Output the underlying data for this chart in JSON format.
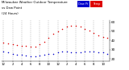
{
  "title_line1": "Milwaukee Weather Outdoor Temperature",
  "title_line2": "vs Dew Point",
  "title_line3": "(24 Hours)",
  "title_fontsize": 2.8,
  "background_color": "#ffffff",
  "plot_bg": "#ffffff",
  "grid_color": "#888888",
  "hours": [
    0,
    1,
    2,
    3,
    4,
    5,
    6,
    7,
    8,
    9,
    10,
    11,
    12,
    13,
    14,
    15,
    16,
    17,
    18,
    19,
    20,
    21,
    22,
    23
  ],
  "temp": [
    38,
    37,
    36,
    35,
    34,
    34,
    33,
    33,
    36,
    39,
    43,
    47,
    50,
    53,
    55,
    56,
    56,
    55,
    53,
    51,
    48,
    46,
    44,
    43
  ],
  "dew": [
    28,
    27,
    26,
    25,
    25,
    24,
    23,
    23,
    24,
    25,
    26,
    26,
    27,
    28,
    28,
    27,
    27,
    27,
    28,
    28,
    28,
    27,
    27,
    26
  ],
  "temp_color": "#dd0000",
  "dew_color": "#0000cc",
  "ylim": [
    18,
    62
  ],
  "yticks": [
    20,
    30,
    40,
    50,
    60
  ],
  "ylabel_fontsize": 3.0,
  "xlabel_fontsize": 2.8,
  "marker_size": 1.2,
  "legend_temp_label": "Temp",
  "legend_dew_label": "Dew Pt",
  "grid_hours": [
    0,
    2,
    4,
    6,
    8,
    10,
    12,
    14,
    16,
    18,
    20,
    22
  ]
}
